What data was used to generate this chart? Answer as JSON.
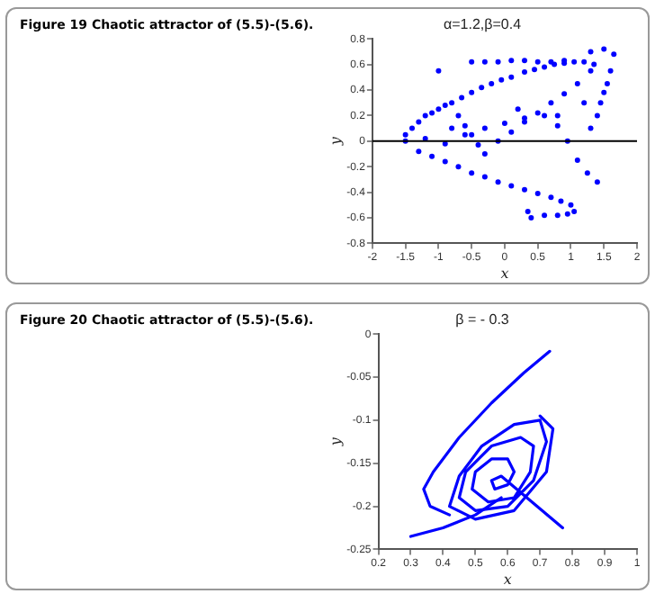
{
  "chart_data": [
    {
      "type": "scatter",
      "title": "α=1.2,β=0.4",
      "xlabel": "x",
      "ylabel": "y",
      "annotations": [
        "Figure 19  Chaotic attractor of (5.5)-(5.6)."
      ],
      "xlim": [
        -2,
        2
      ],
      "xticks": [
        -2,
        -1.5,
        -1,
        -0.5,
        0,
        0.5,
        1,
        1.5,
        2
      ],
      "ylim": [
        -0.8,
        0.8
      ],
      "yticks": [
        -0.8,
        -0.6,
        -0.4,
        -0.2,
        0,
        0.2,
        0.4,
        0.6,
        0.8
      ],
      "grid": false,
      "legend": false,
      "marker": "circle",
      "ref_lines": [
        {
          "axis": "y",
          "value": 0,
          "color": "#000000"
        }
      ],
      "series": [
        {
          "color": "#0000ff",
          "x": [
            -1.5,
            -1.4,
            -1.3,
            -1.2,
            -1.1,
            -1,
            -0.9,
            -0.8,
            -0.65,
            -0.5,
            -0.35,
            -0.2,
            -0.05,
            0.1,
            0.3,
            0.45,
            0.6,
            0.75,
            0.9,
            1.05,
            1.2,
            1.35,
            -0.5,
            -0.3,
            -0.1,
            0.1,
            0.3,
            0.5,
            0.7,
            0.9,
            1.3,
            1.5,
            1.65,
            1.6,
            1.55,
            1.5,
            1.45,
            1.4,
            -1.5,
            -1.3,
            -1.1,
            -0.9,
            -0.7,
            -0.5,
            -0.3,
            -0.1,
            0.1,
            0.3,
            0.5,
            0.7,
            0.85,
            1,
            1.05,
            0.95,
            0.8,
            0.6,
            0.4,
            -0.3,
            -0.1,
            0.1,
            0.3,
            0.5,
            0.7,
            0.9,
            1.1,
            1.3,
            -0.7,
            -0.6,
            -0.5,
            -0.4,
            -1.2,
            -0.9,
            -0.6,
            -0.3,
            0,
            0.3,
            0.6,
            0.8,
            0.95,
            1.1,
            1.25,
            1.4,
            1.2,
            0.8,
            0.2,
            -1,
            0.35,
            -0.8,
            1.3
          ],
          "values": [
            0.05,
            0.1,
            0.15,
            0.2,
            0.22,
            0.25,
            0.28,
            0.3,
            0.34,
            0.38,
            0.42,
            0.45,
            0.48,
            0.5,
            0.54,
            0.56,
            0.58,
            0.6,
            0.61,
            0.62,
            0.62,
            0.6,
            0.62,
            0.62,
            0.62,
            0.63,
            0.63,
            0.62,
            0.62,
            0.63,
            0.7,
            0.72,
            0.68,
            0.55,
            0.45,
            0.38,
            0.3,
            0.2,
            0,
            -0.08,
            -0.12,
            -0.16,
            -0.2,
            -0.25,
            -0.28,
            -0.32,
            -0.35,
            -0.38,
            -0.41,
            -0.44,
            -0.47,
            -0.5,
            -0.55,
            -0.57,
            -0.58,
            -0.58,
            -0.6,
            -0.1,
            0,
            0.07,
            0.15,
            0.22,
            0.3,
            0.37,
            0.45,
            0.55,
            0.2,
            0.12,
            0.05,
            -0.03,
            0.02,
            -0.02,
            0.05,
            0.1,
            0.14,
            0.18,
            0.2,
            0.12,
            0,
            -0.15,
            -0.25,
            -0.32,
            0.3,
            0.2,
            0.25,
            0.55,
            -0.55,
            0.1,
            0.1
          ]
        }
      ]
    },
    {
      "type": "line",
      "title": "β = - 0.3",
      "xlabel": "x",
      "ylabel": "y",
      "annotations": [
        "Figure 20  Chaotic attractor of (5.5)-(5.6)."
      ],
      "xlim": [
        0.2,
        1
      ],
      "xticks": [
        0.2,
        0.3,
        0.4,
        0.5,
        0.6,
        0.7,
        0.8,
        0.9,
        1
      ],
      "ylim": [
        -0.25,
        0
      ],
      "yticks": [
        -0.25,
        -0.2,
        -0.15,
        -0.1,
        -0.05,
        0
      ],
      "grid": false,
      "legend": false,
      "marker": "none",
      "line_style": "solid",
      "series": [
        {
          "color": "#0000ff",
          "x": [
            0.77,
            0.58,
            0.55,
            0.56,
            0.6,
            0.62,
            0.6,
            0.55,
            0.5,
            0.49,
            0.54,
            0.62,
            0.67,
            0.68,
            0.64,
            0.55,
            0.47,
            0.45,
            0.5,
            0.6,
            0.68,
            0.72,
            0.7,
            0.62,
            0.52,
            0.45,
            0.42,
            0.5,
            0.62,
            0.72,
            0.74,
            0.7
          ],
          "values": [
            -0.225,
            -0.165,
            -0.17,
            -0.18,
            -0.175,
            -0.16,
            -0.145,
            -0.145,
            -0.16,
            -0.18,
            -0.195,
            -0.19,
            -0.16,
            -0.13,
            -0.12,
            -0.13,
            -0.16,
            -0.19,
            -0.205,
            -0.2,
            -0.17,
            -0.125,
            -0.1,
            -0.105,
            -0.13,
            -0.165,
            -0.2,
            -0.215,
            -0.205,
            -0.16,
            -0.11,
            -0.095
          ]
        },
        {
          "color": "#0000ff",
          "x": [
            0.42,
            0.36,
            0.34,
            0.37,
            0.45,
            0.55,
            0.65,
            0.73
          ],
          "values": [
            -0.21,
            -0.2,
            -0.18,
            -0.16,
            -0.12,
            -0.08,
            -0.045,
            -0.02
          ]
        },
        {
          "color": "#0000ff",
          "x": [
            0.3,
            0.4,
            0.5,
            0.58
          ],
          "values": [
            -0.235,
            -0.225,
            -0.21,
            -0.19
          ]
        }
      ]
    }
  ]
}
